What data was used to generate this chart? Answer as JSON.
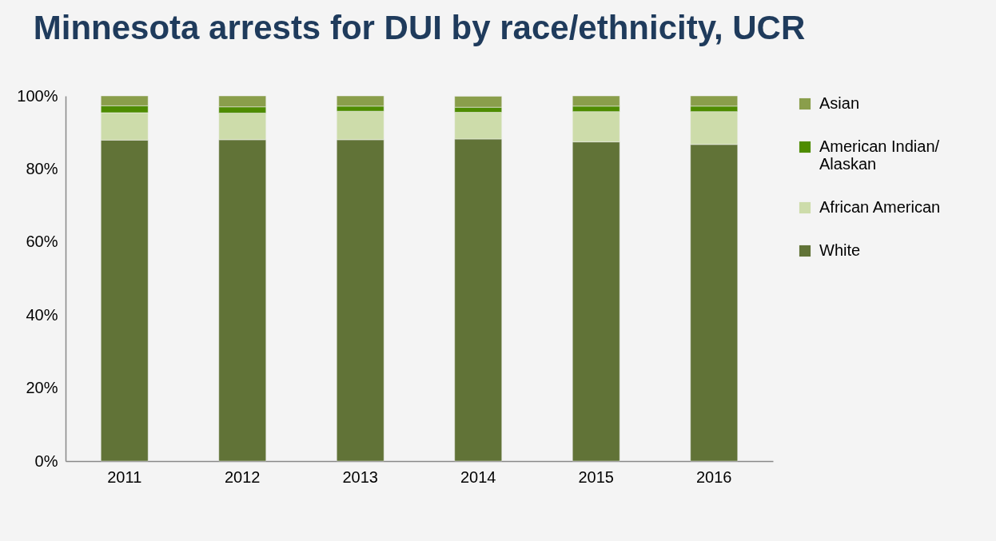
{
  "chart_data": {
    "type": "bar",
    "stacked": true,
    "title": "Minnesota arrests for DUI by race/ethnicity, UCR",
    "categories": [
      "2011",
      "2012",
      "2013",
      "2014",
      "2015",
      "2016"
    ],
    "series": [
      {
        "name": "White",
        "color": "#617337",
        "values": [
          87.9,
          88.0,
          88.0,
          88.2,
          87.4,
          86.7
        ]
      },
      {
        "name": "African American",
        "color": "#cddcaa",
        "values": [
          7.5,
          7.3,
          7.8,
          7.3,
          8.3,
          9.0
        ]
      },
      {
        "name": "American Indian/ Alaskan",
        "color": "#4e8c00",
        "values": [
          1.9,
          1.7,
          1.4,
          1.4,
          1.5,
          1.5
        ]
      },
      {
        "name": "Asian",
        "color": "#8a9e4b",
        "values": [
          2.7,
          3.0,
          2.8,
          3.0,
          2.8,
          2.8
        ]
      }
    ],
    "ylim": [
      0,
      100
    ],
    "yticks": [
      {
        "value": 0,
        "label": "0%"
      },
      {
        "value": 20,
        "label": "20%"
      },
      {
        "value": 40,
        "label": "40%"
      },
      {
        "value": 60,
        "label": "60%"
      },
      {
        "value": 80,
        "label": "80%"
      },
      {
        "value": 100,
        "label": "100%"
      }
    ],
    "grid": false,
    "legend": "right"
  }
}
